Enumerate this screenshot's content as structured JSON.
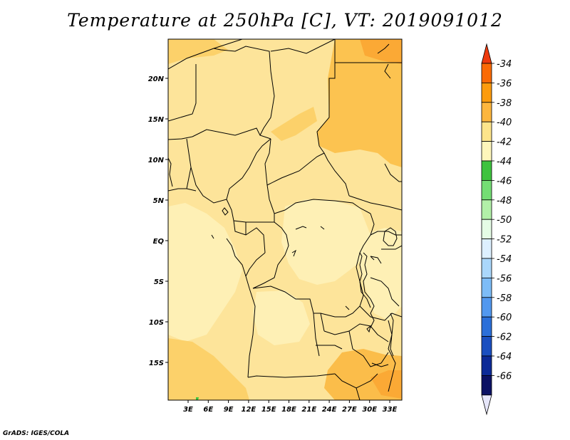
{
  "title": "Temperature at 250hPa [C], VT: 2019091012",
  "credit": "GrADS: IGES/COLA",
  "map": {
    "lat_labels": [
      "20N",
      "15N",
      "10N",
      "5N",
      "EQ",
      "5S",
      "10S",
      "15S"
    ],
    "lon_labels": [
      "3E",
      "6E",
      "9E",
      "12E",
      "15E",
      "18E",
      "21E",
      "24E",
      "27E",
      "30E",
      "33E"
    ],
    "background_color": "#fde49a"
  },
  "colorbar": {
    "levels": [
      "-34",
      "-36",
      "-38",
      "-40",
      "-42",
      "-44",
      "-46",
      "-48",
      "-50",
      "-52",
      "-54",
      "-56",
      "-58",
      "-60",
      "-62",
      "-64",
      "-66"
    ],
    "colors": [
      "#ee3a0e",
      "#fa6a05",
      "#fc9b0e",
      "#fdb63e",
      "#fde48b",
      "#fef6bb",
      "#3ec33e",
      "#74dd74",
      "#b2f0a8",
      "#e5fce5",
      "#ddf0ff",
      "#aad7fb",
      "#7dbcf7",
      "#5298ef",
      "#2b6fd9",
      "#1a4fc0",
      "#0c2a97",
      "#0b1164",
      "#e6e6fa"
    ]
  }
}
